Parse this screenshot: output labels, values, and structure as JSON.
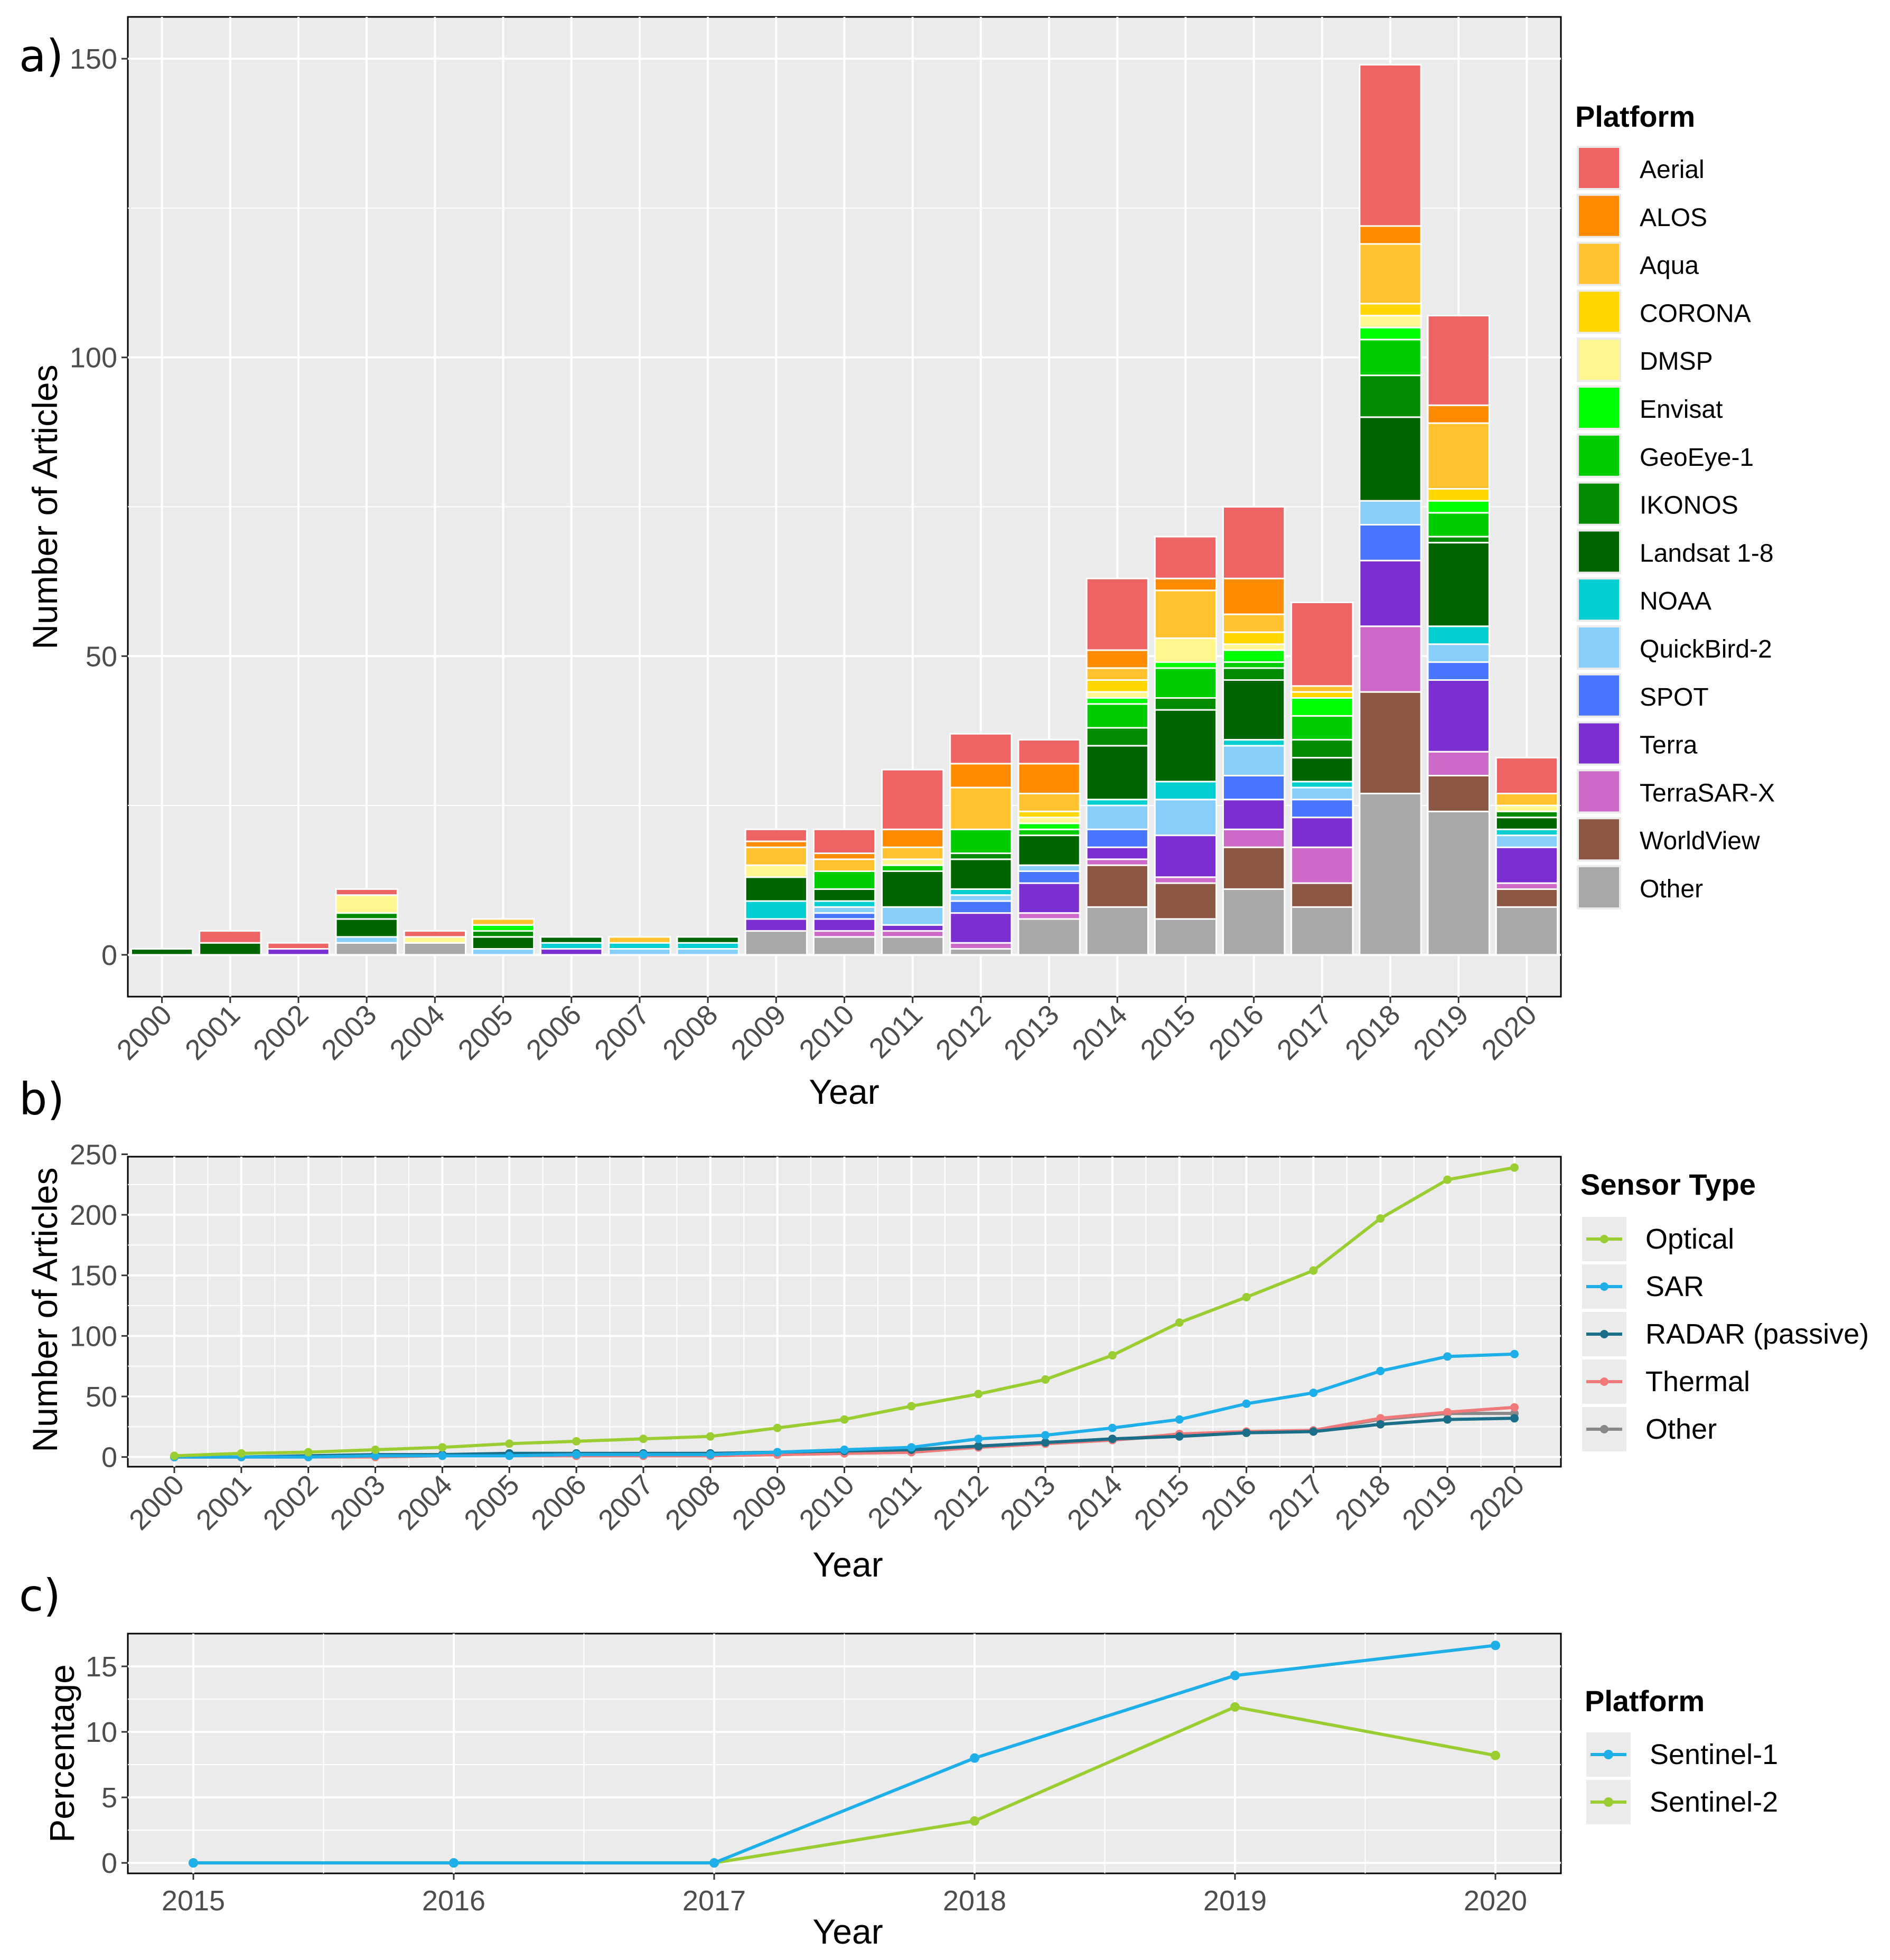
{
  "colors": {
    "panel_bg": "#EBEBEB",
    "grid_major": "#FFFFFF",
    "text": "#000000",
    "tick_text": "#4D4D4D",
    "legend_key_bg": "#EBEBEB"
  },
  "chart_data": [
    {
      "panel": "a)",
      "type": "bar",
      "stacked": true,
      "xlabel": "Year",
      "ylabel": "Number of Articles",
      "ylim": [
        -7,
        157
      ],
      "yticks": [
        0,
        50,
        100,
        150
      ],
      "categories": [
        "2000",
        "2001",
        "2002",
        "2003",
        "2004",
        "2005",
        "2006",
        "2007",
        "2008",
        "2009",
        "2010",
        "2011",
        "2012",
        "2013",
        "2014",
        "2015",
        "2016",
        "2017",
        "2018",
        "2019",
        "2020"
      ],
      "legend_title": "Platform",
      "legend": [
        {
          "name": "Aerial",
          "color": "#EE6464"
        },
        {
          "name": "ALOS",
          "color": "#FF8C00"
        },
        {
          "name": "Aqua",
          "color": "#FFC12E"
        },
        {
          "name": "CORONA",
          "color": "#FFD700"
        },
        {
          "name": "DMSP",
          "color": "#FFF68F"
        },
        {
          "name": "Envisat",
          "color": "#00FF00"
        },
        {
          "name": "GeoEye-1",
          "color": "#00CD00"
        },
        {
          "name": "IKONOS",
          "color": "#008B00"
        },
        {
          "name": "Landsat 1-8",
          "color": "#006400"
        },
        {
          "name": "NOAA",
          "color": "#00CED1"
        },
        {
          "name": "QuickBird-2",
          "color": "#87CEFA"
        },
        {
          "name": "SPOT",
          "color": "#4876FF"
        },
        {
          "name": "Terra",
          "color": "#7B2FD0"
        },
        {
          "name": "TerraSAR-X",
          "color": "#CD69C9"
        },
        {
          "name": "WorldView",
          "color": "#8B5742"
        },
        {
          "name": "Other",
          "color": "#A8A8A8"
        }
      ],
      "stack_order_bottom_to_top": [
        "Other",
        "WorldView",
        "TerraSAR-X",
        "Terra",
        "SPOT",
        "QuickBird-2",
        "NOAA",
        "Landsat 1-8",
        "IKONOS",
        "GeoEye-1",
        "Envisat",
        "DMSP",
        "CORONA",
        "Aqua",
        "ALOS",
        "Aerial"
      ],
      "series": [
        {
          "name": "Other",
          "values": [
            0,
            0,
            0,
            2,
            2,
            0,
            0,
            0,
            0,
            4,
            3,
            3,
            1,
            6,
            8,
            6,
            11,
            8,
            27,
            24,
            8
          ]
        },
        {
          "name": "WorldView",
          "values": [
            0,
            0,
            0,
            0,
            0,
            0,
            0,
            0,
            0,
            0,
            0,
            0,
            0,
            0,
            7,
            6,
            7,
            4,
            17,
            6,
            3
          ]
        },
        {
          "name": "TerraSAR-X",
          "values": [
            0,
            0,
            0,
            0,
            0,
            0,
            0,
            0,
            0,
            0,
            1,
            1,
            1,
            1,
            1,
            1,
            3,
            6,
            11,
            4,
            1
          ]
        },
        {
          "name": "Terra",
          "values": [
            0,
            0,
            1,
            0,
            0,
            0,
            1,
            0,
            0,
            2,
            2,
            1,
            5,
            5,
            2,
            7,
            5,
            5,
            11,
            12,
            6
          ]
        },
        {
          "name": "SPOT",
          "values": [
            0,
            0,
            0,
            0,
            0,
            0,
            0,
            0,
            0,
            0,
            1,
            0,
            2,
            2,
            3,
            0,
            4,
            3,
            6,
            3,
            0
          ]
        },
        {
          "name": "QuickBird-2",
          "values": [
            0,
            0,
            0,
            1,
            0,
            1,
            0,
            1,
            1,
            0,
            1,
            3,
            1,
            1,
            4,
            6,
            5,
            2,
            4,
            3,
            2
          ]
        },
        {
          "name": "NOAA",
          "values": [
            0,
            0,
            0,
            0,
            0,
            0,
            1,
            1,
            1,
            3,
            1,
            0,
            1,
            0,
            1,
            3,
            1,
            1,
            0,
            3,
            1
          ]
        },
        {
          "name": "Landsat 1-8",
          "values": [
            1,
            2,
            0,
            3,
            0,
            2,
            1,
            0,
            1,
            4,
            2,
            6,
            5,
            5,
            9,
            12,
            10,
            4,
            14,
            14,
            2
          ]
        },
        {
          "name": "IKONOS",
          "values": [
            0,
            0,
            0,
            1,
            0,
            1,
            0,
            0,
            0,
            0,
            0,
            0,
            1,
            0,
            3,
            2,
            2,
            3,
            7,
            1,
            1
          ]
        },
        {
          "name": "GeoEye-1",
          "values": [
            0,
            0,
            0,
            0,
            0,
            0,
            0,
            0,
            0,
            0,
            3,
            1,
            4,
            1,
            4,
            5,
            1,
            4,
            6,
            4,
            0
          ]
        },
        {
          "name": "Envisat",
          "values": [
            0,
            0,
            0,
            0,
            0,
            1,
            0,
            0,
            0,
            0,
            0,
            0,
            0,
            1,
            1,
            1,
            2,
            3,
            2,
            2,
            0
          ]
        },
        {
          "name": "DMSP",
          "values": [
            0,
            0,
            0,
            3,
            1,
            0,
            0,
            0,
            0,
            2,
            0,
            1,
            0,
            1,
            1,
            4,
            1,
            0,
            2,
            0,
            1
          ]
        },
        {
          "name": "CORONA",
          "values": [
            0,
            0,
            0,
            0,
            0,
            0,
            0,
            0,
            0,
            0,
            0,
            0,
            0,
            1,
            2,
            0,
            2,
            1,
            2,
            2,
            0
          ]
        },
        {
          "name": "Aqua",
          "values": [
            0,
            0,
            0,
            0,
            0,
            1,
            0,
            1,
            0,
            3,
            2,
            2,
            7,
            3,
            2,
            8,
            3,
            1,
            10,
            11,
            2
          ]
        },
        {
          "name": "ALOS",
          "values": [
            0,
            0,
            0,
            0,
            0,
            0,
            0,
            0,
            0,
            1,
            1,
            3,
            4,
            5,
            3,
            2,
            6,
            0,
            3,
            3,
            0
          ]
        },
        {
          "name": "Aerial",
          "values": [
            0,
            2,
            1,
            1,
            1,
            0,
            0,
            0,
            0,
            2,
            4,
            10,
            5,
            4,
            12,
            7,
            12,
            14,
            27,
            15,
            6
          ]
        }
      ]
    },
    {
      "panel": "b)",
      "type": "line",
      "xlabel": "Year",
      "ylabel": "Number of Articles",
      "ylim": [
        -8,
        248
      ],
      "yticks": [
        0,
        50,
        100,
        150,
        200,
        250
      ],
      "x": [
        "2000",
        "2001",
        "2002",
        "2003",
        "2004",
        "2005",
        "2006",
        "2007",
        "2008",
        "2009",
        "2010",
        "2011",
        "2012",
        "2013",
        "2014",
        "2015",
        "2016",
        "2017",
        "2018",
        "2019",
        "2020"
      ],
      "legend_title": "Sensor Type",
      "series": [
        {
          "name": "Optical",
          "color": "#9ACD32",
          "values": [
            1,
            3,
            4,
            6,
            8,
            11,
            13,
            15,
            17,
            24,
            31,
            42,
            52,
            64,
            84,
            111,
            132,
            154,
            197,
            229,
            239
          ]
        },
        {
          "name": "SAR",
          "color": "#1EAEE8",
          "values": [
            0,
            0,
            0,
            1,
            1,
            1,
            2,
            2,
            2,
            4,
            6,
            8,
            15,
            18,
            24,
            31,
            44,
            53,
            71,
            83,
            85
          ]
        },
        {
          "name": "RADAR (passive)",
          "color": "#1A6E88",
          "values": [
            0,
            0,
            1,
            2,
            2,
            3,
            3,
            3,
            3,
            4,
            5,
            6,
            9,
            12,
            15,
            17,
            20,
            21,
            27,
            31,
            32
          ]
        },
        {
          "name": "Thermal",
          "color": "#F07A7A",
          "values": [
            0,
            0,
            0,
            0,
            1,
            1,
            1,
            1,
            1,
            2,
            3,
            4,
            8,
            11,
            14,
            19,
            21,
            22,
            32,
            37,
            41
          ]
        },
        {
          "name": "Other",
          "color": "#888888",
          "values": [
            0,
            0,
            0,
            1,
            1,
            1,
            1,
            1,
            1,
            2,
            3,
            4,
            8,
            11,
            14,
            18,
            20,
            22,
            31,
            36,
            36
          ]
        }
      ]
    },
    {
      "panel": "c)",
      "type": "line",
      "xlabel": "Year",
      "ylabel": "Percentage",
      "ylim": [
        -0.8,
        17.5
      ],
      "yticks": [
        0,
        5,
        10,
        15
      ],
      "x": [
        "2015",
        "2016",
        "2017",
        "2018",
        "2019",
        "2020"
      ],
      "legend_title": "Platform",
      "series": [
        {
          "name": "Sentinel-1",
          "color": "#1EAEE8",
          "values": [
            0,
            0,
            0,
            8.0,
            14.3,
            16.6
          ]
        },
        {
          "name": "Sentinel-2",
          "color": "#9ACD32",
          "values": [
            0,
            0,
            0,
            3.2,
            11.9,
            8.2
          ]
        }
      ]
    }
  ]
}
